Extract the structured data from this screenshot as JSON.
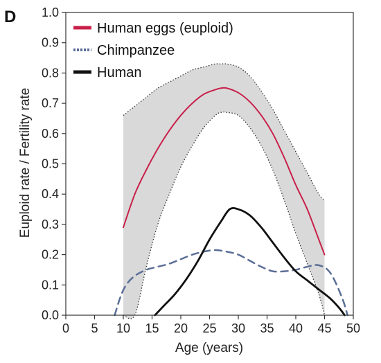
{
  "chart_data": {
    "type": "line",
    "panel_label": "D",
    "xlabel": "Age (years)",
    "ylabel": "Euploid rate / Fertility rate",
    "xlim": [
      0,
      50
    ],
    "ylim": [
      0,
      1.0
    ],
    "x_ticks": [
      "0",
      "5",
      "10",
      "15",
      "20",
      "25",
      "30",
      "35",
      "40",
      "45",
      "50"
    ],
    "y_ticks": [
      "0.0",
      "0.1",
      "0.2",
      "0.3",
      "0.4",
      "0.5",
      "0.6",
      "0.7",
      "0.8",
      "0.9",
      "1.0"
    ],
    "grid": false,
    "legend_position": "top-left",
    "series": [
      {
        "name": "Human eggs (euploid)",
        "color": "#c8204a",
        "style": "solid",
        "x": [
          10,
          12,
          14,
          16,
          18,
          20,
          22,
          24,
          26,
          27,
          28,
          30,
          32,
          34,
          36,
          38,
          40,
          42,
          44,
          45
        ],
        "y": [
          0.29,
          0.4,
          0.48,
          0.55,
          0.61,
          0.66,
          0.7,
          0.73,
          0.745,
          0.75,
          0.75,
          0.735,
          0.705,
          0.66,
          0.6,
          0.52,
          0.43,
          0.35,
          0.25,
          0.2
        ],
        "band_lower": [
          0.0,
          0.0,
          0.16,
          0.3,
          0.4,
          0.49,
          0.56,
          0.62,
          0.66,
          0.67,
          0.67,
          0.66,
          0.62,
          0.56,
          0.48,
          0.38,
          0.27,
          0.17,
          0.07,
          0.0
        ],
        "band_upper": [
          0.66,
          0.69,
          0.72,
          0.75,
          0.77,
          0.79,
          0.81,
          0.82,
          0.83,
          0.83,
          0.83,
          0.82,
          0.79,
          0.74,
          0.68,
          0.61,
          0.54,
          0.47,
          0.4,
          0.38
        ]
      },
      {
        "name": "Chimpanzee",
        "color": "#5a6e96",
        "style": "dashed",
        "x": [
          8.5,
          9.5,
          10.5,
          12,
          14,
          16,
          18,
          20,
          22,
          24,
          26,
          28,
          30,
          32,
          34,
          36,
          38,
          40,
          42,
          44,
          46,
          48,
          49
        ],
        "y": [
          0.0,
          0.06,
          0.1,
          0.13,
          0.15,
          0.16,
          0.17,
          0.185,
          0.2,
          0.21,
          0.215,
          0.21,
          0.2,
          0.18,
          0.16,
          0.145,
          0.145,
          0.15,
          0.16,
          0.165,
          0.14,
          0.06,
          0.0
        ]
      },
      {
        "name": "Human",
        "color": "#111111",
        "style": "solid",
        "x": [
          15.5,
          17,
          19,
          21,
          23,
          25,
          27,
          28.5,
          30,
          32,
          34,
          36,
          38,
          40,
          42,
          44,
          46,
          47.5,
          48.5
        ],
        "y": [
          0.0,
          0.03,
          0.07,
          0.12,
          0.18,
          0.25,
          0.31,
          0.35,
          0.35,
          0.33,
          0.29,
          0.24,
          0.19,
          0.145,
          0.115,
          0.085,
          0.055,
          0.025,
          0.0
        ]
      }
    ]
  },
  "legend_icons": {
    "Human eggs (euploid)": "red-line-swatch",
    "Chimpanzee": "blue-dotted-line-swatch",
    "Human": "black-line-swatch"
  }
}
